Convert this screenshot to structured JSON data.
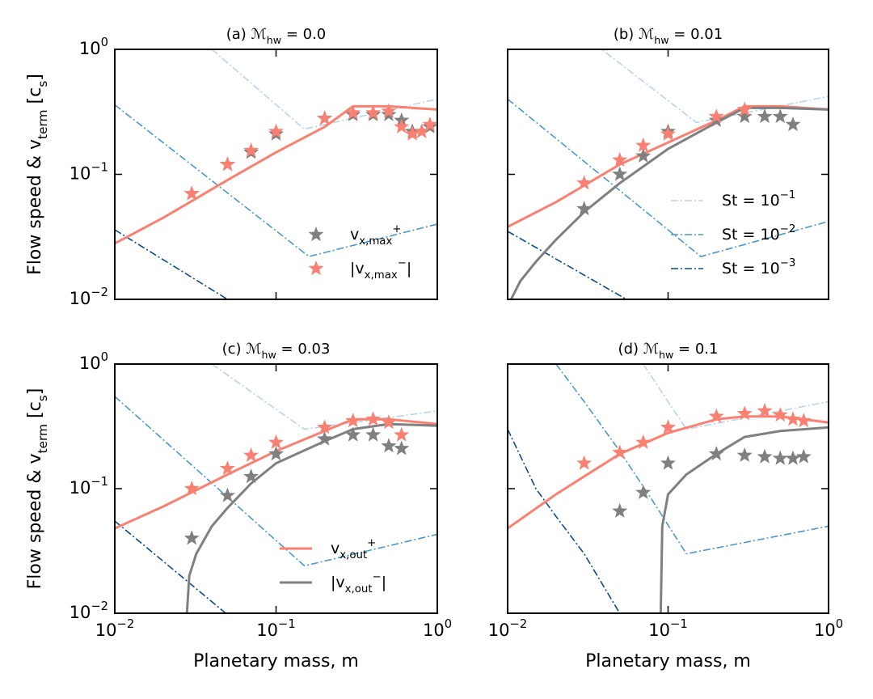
{
  "chart_data": [
    {
      "type": "line",
      "title": "(a) ℳ_{hw} = 0.0",
      "ylabel": "Flow speed & v_{term} [c_{s}]",
      "xscale": "log",
      "yscale": "log",
      "xlim": [
        0.01,
        1
      ],
      "ylim": [
        0.01,
        1
      ],
      "xticks": [
        {
          "value": 0.01,
          "label": "10^{−2}"
        },
        {
          "value": 0.1,
          "label": "10^{−1}"
        },
        {
          "value": 1,
          "label": "10^{0}"
        }
      ],
      "yticks": [
        {
          "value": 0.01,
          "label": "10^{−2}"
        },
        {
          "value": 0.1,
          "label": "10^{−1}"
        },
        {
          "value": 1,
          "label": "10^{0}"
        }
      ],
      "xtick_labels": false,
      "ytick_labels": true,
      "legend": "lower right",
      "series": [
        {
          "style": "dashdot",
          "color": "#b9d3ea",
          "x": [
            0.04,
            0.15,
            1
          ],
          "values": [
            1,
            0.23,
            0.4
          ]
        },
        {
          "style": "dashdot",
          "color": "#4a98c9",
          "x": [
            0.01,
            0.16,
            1
          ],
          "values": [
            0.36,
            0.022,
            0.04
          ]
        },
        {
          "style": "dashdot",
          "color": "#0d4a8c",
          "x": [
            0.01,
            0.05,
            0.06
          ],
          "values": [
            0.036,
            0.01,
            0.008
          ]
        },
        {
          "style": "solid",
          "color": "#fa8072",
          "x": [
            0.01,
            0.02,
            0.05,
            0.1,
            0.2,
            0.3,
            0.5,
            1
          ],
          "values": [
            0.028,
            0.045,
            0.09,
            0.15,
            0.24,
            0.35,
            0.35,
            0.33
          ]
        },
        {
          "name": "v_{x,max}^{+}",
          "style": "star",
          "color": "#808080",
          "x": [
            0.03,
            0.05,
            0.07,
            0.1,
            0.2,
            0.3,
            0.4,
            0.5,
            0.6,
            0.7,
            0.8,
            0.9
          ],
          "values": [
            0.07,
            0.12,
            0.15,
            0.21,
            0.28,
            0.3,
            0.3,
            0.3,
            0.27,
            0.22,
            0.22,
            0.24
          ]
        },
        {
          "name": "|v_{x,max}^{−}|",
          "style": "star",
          "color": "#fa8072",
          "x": [
            0.03,
            0.05,
            0.07,
            0.1,
            0.2,
            0.3,
            0.4,
            0.5,
            0.6,
            0.7,
            0.8,
            0.9
          ],
          "values": [
            0.07,
            0.12,
            0.155,
            0.22,
            0.28,
            0.31,
            0.31,
            0.32,
            0.24,
            0.21,
            0.22,
            0.25
          ]
        }
      ]
    },
    {
      "type": "line",
      "title": "(b) ℳ_{hw} = 0.01",
      "xscale": "log",
      "yscale": "log",
      "xlim": [
        0.01,
        1
      ],
      "ylim": [
        0.01,
        1
      ],
      "xticks": [
        {
          "value": 0.01,
          "label": "10^{−2}"
        },
        {
          "value": 0.1,
          "label": "10^{−1}"
        },
        {
          "value": 1,
          "label": "10^{0}"
        }
      ],
      "yticks": [
        {
          "value": 0.01,
          "label": "10^{−2}"
        },
        {
          "value": 0.1,
          "label": "10^{−1}"
        },
        {
          "value": 1,
          "label": "10^{0}"
        }
      ],
      "xtick_labels": false,
      "ytick_labels": false,
      "legend": "lower right",
      "series": [
        {
          "name": "St = 10^{−1}",
          "style": "dashdot",
          "color": "#b9d3ea",
          "x": [
            0.035,
            0.15,
            1
          ],
          "values": [
            1.1,
            0.26,
            0.42
          ]
        },
        {
          "name": "St = 10^{−2}",
          "style": "dashdot",
          "color": "#4a98c9",
          "x": [
            0.01,
            0.16,
            1
          ],
          "values": [
            0.4,
            0.022,
            0.042
          ]
        },
        {
          "name": "St = 10^{−3}",
          "style": "dashdot",
          "color": "#0d4a8c",
          "x": [
            0.01,
            0.055,
            0.06
          ],
          "values": [
            0.035,
            0.01,
            0.008
          ]
        },
        {
          "style": "solid",
          "color": "#fa8072",
          "x": [
            0.01,
            0.02,
            0.05,
            0.1,
            0.2,
            0.3,
            0.5,
            1
          ],
          "values": [
            0.038,
            0.06,
            0.12,
            0.18,
            0.27,
            0.35,
            0.35,
            0.33
          ]
        },
        {
          "style": "solid",
          "color": "#808080",
          "x": [
            0.0105,
            0.012,
            0.015,
            0.02,
            0.03,
            0.05,
            0.1,
            0.2,
            0.3,
            0.5,
            1
          ],
          "values": [
            0.01,
            0.014,
            0.02,
            0.03,
            0.05,
            0.085,
            0.16,
            0.26,
            0.34,
            0.34,
            0.33
          ]
        },
        {
          "style": "star",
          "color": "#808080",
          "x": [
            0.03,
            0.05,
            0.07,
            0.1,
            0.2,
            0.3,
            0.4,
            0.5,
            0.6
          ],
          "values": [
            0.053,
            0.1,
            0.14,
            0.22,
            0.27,
            0.29,
            0.29,
            0.29,
            0.25
          ]
        },
        {
          "style": "star",
          "color": "#fa8072",
          "x": [
            0.03,
            0.05,
            0.07,
            0.1,
            0.2,
            0.3
          ],
          "values": [
            0.085,
            0.13,
            0.17,
            0.21,
            0.29,
            0.33
          ]
        }
      ]
    },
    {
      "type": "line",
      "title": "(c) ℳ_{hw} = 0.03",
      "ylabel": "Flow speed & v_{term} [c_{s}]",
      "xlabel": "Planetary mass, m",
      "xscale": "log",
      "yscale": "log",
      "xlim": [
        0.01,
        1
      ],
      "ylim": [
        0.01,
        1
      ],
      "xticks": [
        {
          "value": 0.01,
          "label": "10^{−2}"
        },
        {
          "value": 0.1,
          "label": "10^{−1}"
        },
        {
          "value": 1,
          "label": "10^{0}"
        }
      ],
      "yticks": [
        {
          "value": 0.01,
          "label": "10^{−2}"
        },
        {
          "value": 0.1,
          "label": "10^{−1}"
        },
        {
          "value": 1,
          "label": "10^{0}"
        }
      ],
      "xtick_labels": true,
      "ytick_labels": true,
      "legend": "lower right",
      "series": [
        {
          "style": "dashdot",
          "color": "#b9d3ea",
          "x": [
            0.04,
            0.15,
            1
          ],
          "values": [
            1,
            0.3,
            0.42
          ]
        },
        {
          "style": "dashdot",
          "color": "#4a98c9",
          "x": [
            0.01,
            0.15,
            1
          ],
          "values": [
            0.55,
            0.024,
            0.043
          ]
        },
        {
          "style": "dashdot",
          "color": "#0d4a8c",
          "x": [
            0.01,
            0.06
          ],
          "values": [
            0.055,
            0.008
          ]
        },
        {
          "name": "v_{x,out}^{+}",
          "style": "solid",
          "color": "#fa8072",
          "x": [
            0.01,
            0.02,
            0.05,
            0.1,
            0.2,
            0.3,
            0.5,
            1
          ],
          "values": [
            0.048,
            0.072,
            0.13,
            0.2,
            0.29,
            0.36,
            0.36,
            0.33
          ]
        },
        {
          "name": "|v_{x,out}^{−}|",
          "style": "solid",
          "color": "#808080",
          "x": [
            0.028,
            0.029,
            0.032,
            0.04,
            0.05,
            0.07,
            0.1,
            0.2,
            0.3,
            0.5,
            1
          ],
          "values": [
            0.01,
            0.02,
            0.03,
            0.05,
            0.07,
            0.11,
            0.16,
            0.24,
            0.3,
            0.33,
            0.32
          ]
        },
        {
          "style": "star",
          "color": "#808080",
          "x": [
            0.03,
            0.05,
            0.07,
            0.1,
            0.2,
            0.3,
            0.4,
            0.5,
            0.6
          ],
          "values": [
            0.04,
            0.088,
            0.125,
            0.19,
            0.25,
            0.27,
            0.27,
            0.22,
            0.21
          ]
        },
        {
          "style": "star",
          "color": "#fa8072",
          "x": [
            0.03,
            0.05,
            0.07,
            0.1,
            0.2,
            0.3,
            0.4,
            0.5,
            0.6
          ],
          "values": [
            0.1,
            0.145,
            0.185,
            0.235,
            0.31,
            0.35,
            0.36,
            0.34,
            0.27
          ]
        }
      ]
    },
    {
      "type": "line",
      "title": "(d) ℳ_{hw} = 0.1",
      "xlabel": "Planetary mass, m",
      "xscale": "log",
      "yscale": "log",
      "xlim": [
        0.01,
        1
      ],
      "ylim": [
        0.01,
        1
      ],
      "xticks": [
        {
          "value": 0.01,
          "label": "10^{−2}"
        },
        {
          "value": 0.1,
          "label": "10^{−1}"
        },
        {
          "value": 1,
          "label": "10^{0}"
        }
      ],
      "yticks": [
        {
          "value": 0.01,
          "label": "10^{−2}"
        },
        {
          "value": 0.1,
          "label": "10^{−1}"
        },
        {
          "value": 1,
          "label": "10^{0}"
        }
      ],
      "xtick_labels": true,
      "ytick_labels": false,
      "legend": "lower right",
      "series": [
        {
          "style": "dashdot",
          "color": "#b9d3ea",
          "x": [
            0.07,
            0.13,
            1
          ],
          "values": [
            1,
            0.3,
            0.5
          ]
        },
        {
          "style": "dashdot",
          "color": "#4a98c9",
          "x": [
            0.02,
            0.03,
            0.05,
            0.08,
            0.13,
            1
          ],
          "values": [
            1,
            0.5,
            0.2,
            0.08,
            0.03,
            0.05
          ]
        },
        {
          "style": "dashdot",
          "color": "#0d4a8c",
          "x": [
            0.01,
            0.015,
            0.02,
            0.03,
            0.05,
            0.06
          ],
          "values": [
            0.3,
            0.1,
            0.06,
            0.03,
            0.01,
            0.007
          ]
        },
        {
          "style": "solid",
          "color": "#fa8072",
          "x": [
            0.01,
            0.02,
            0.05,
            0.1,
            0.2,
            0.3,
            0.5,
            1
          ],
          "values": [
            0.048,
            0.09,
            0.19,
            0.28,
            0.36,
            0.38,
            0.38,
            0.34
          ]
        },
        {
          "style": "solid",
          "color": "#808080",
          "x": [
            0.09,
            0.092,
            0.1,
            0.13,
            0.2,
            0.3,
            0.5,
            1
          ],
          "values": [
            0.01,
            0.05,
            0.09,
            0.13,
            0.19,
            0.26,
            0.29,
            0.31
          ]
        },
        {
          "style": "star",
          "color": "#808080",
          "x": [
            0.05,
            0.07,
            0.1,
            0.2,
            0.3,
            0.4,
            0.5,
            0.6,
            0.7
          ],
          "values": [
            0.066,
            0.093,
            0.16,
            0.19,
            0.185,
            0.18,
            0.175,
            0.175,
            0.18
          ]
        },
        {
          "style": "star",
          "color": "#fa8072",
          "x": [
            0.03,
            0.05,
            0.07,
            0.1,
            0.2,
            0.3,
            0.4,
            0.5,
            0.6,
            0.7
          ],
          "values": [
            0.16,
            0.195,
            0.235,
            0.31,
            0.38,
            0.4,
            0.42,
            0.39,
            0.36,
            0.35
          ]
        }
      ]
    }
  ]
}
